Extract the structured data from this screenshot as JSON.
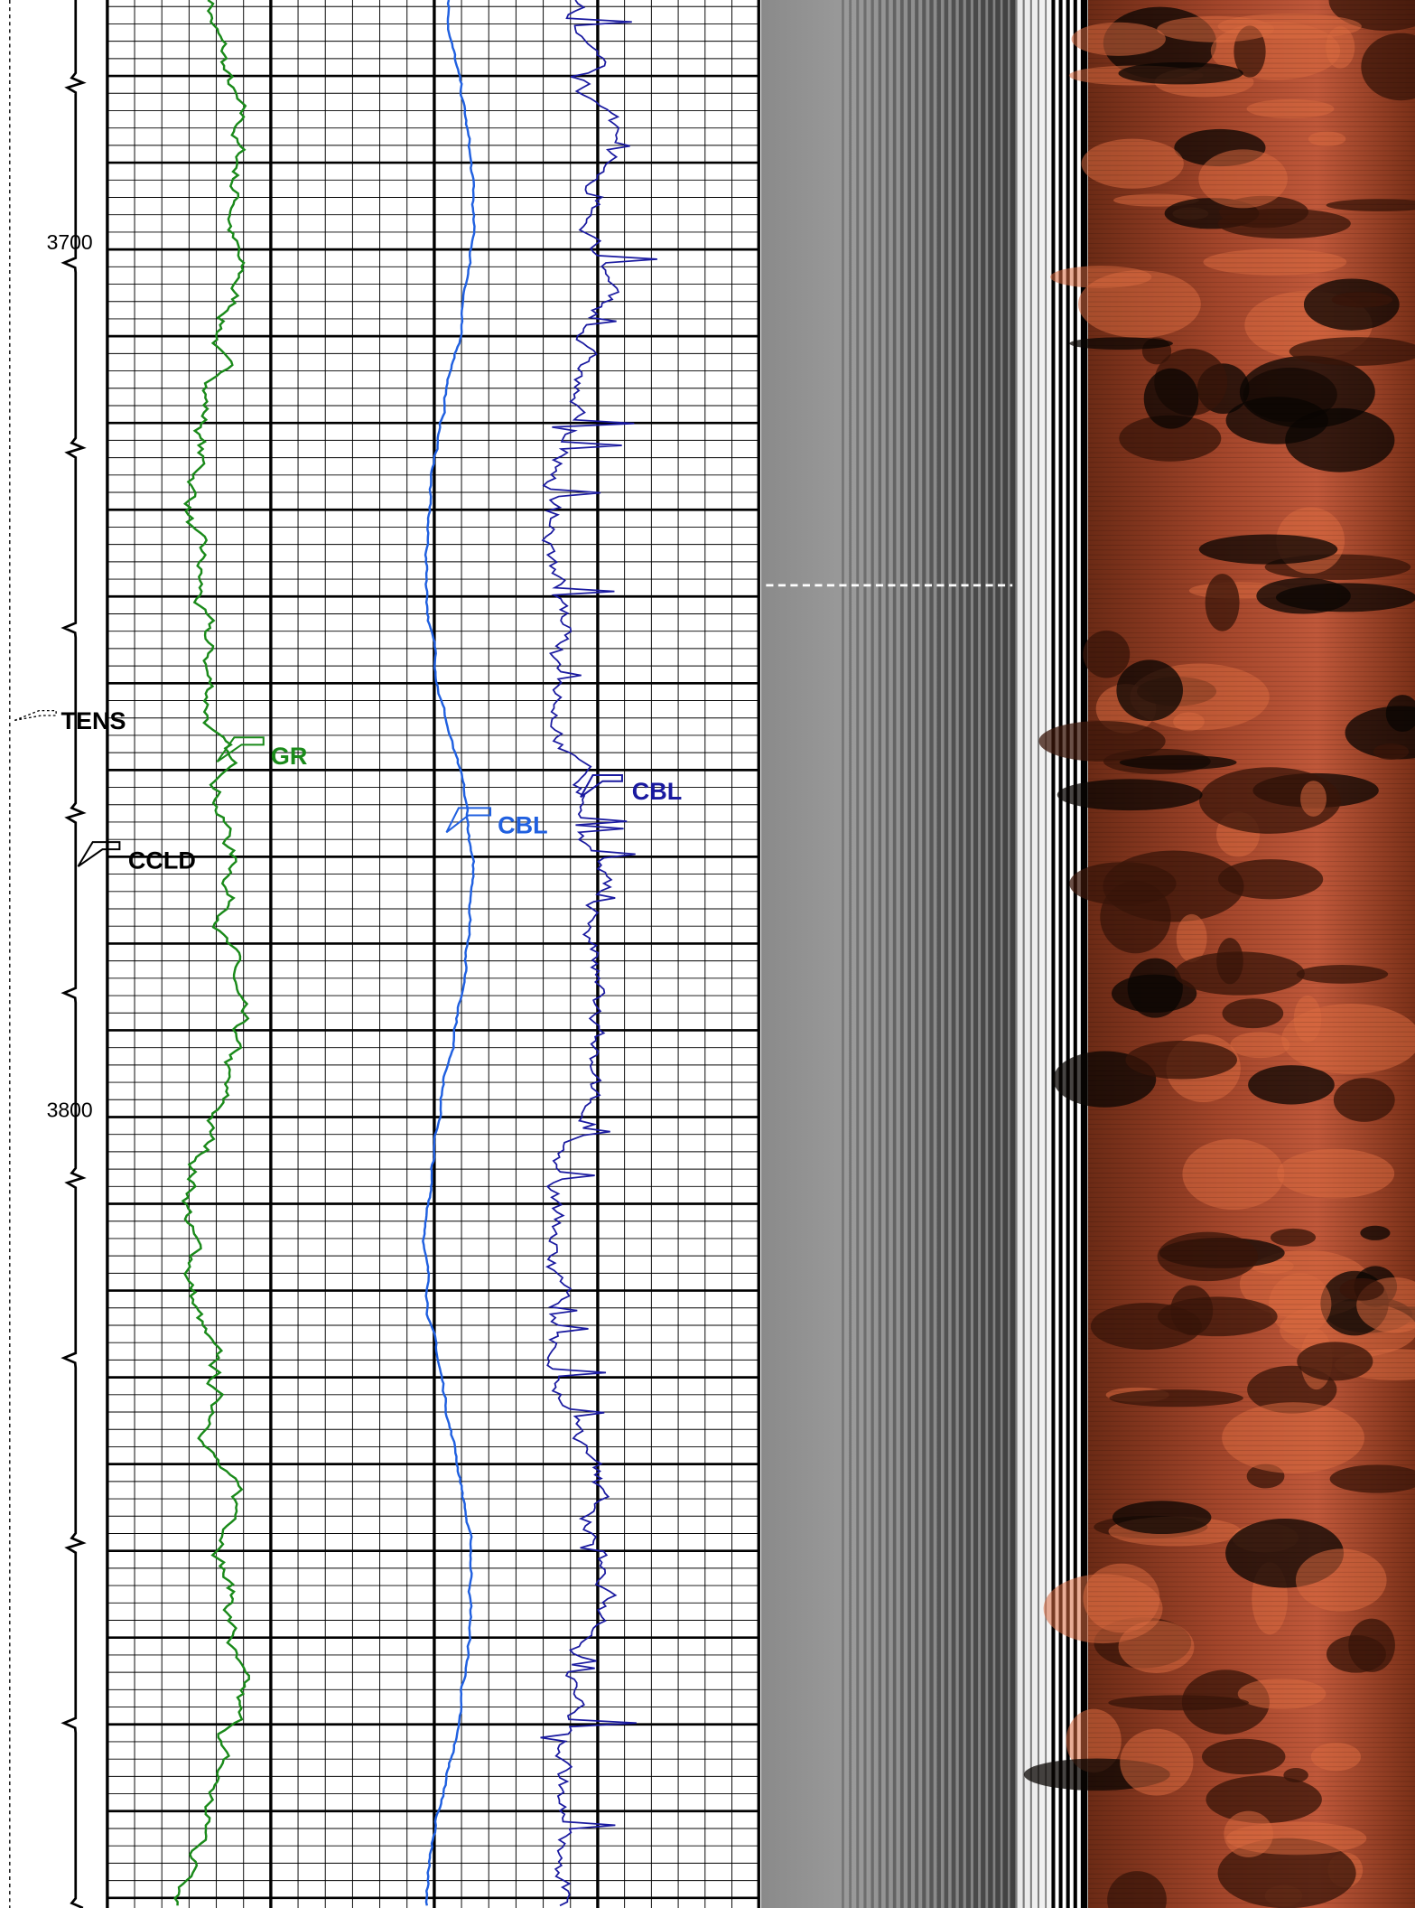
{
  "depth_labels": [
    "3700",
    "3800"
  ],
  "curve_labels": {
    "tens": "TENS",
    "gr": "GR",
    "cbl_1": "CBL",
    "cbl_2": "CBL",
    "ccld": "CCLD"
  }
}
